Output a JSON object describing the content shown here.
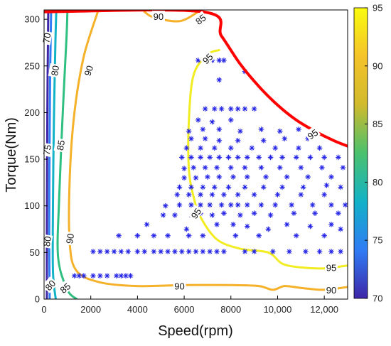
{
  "chart_data": {
    "type": "scatter",
    "title": "",
    "xlabel": "Speed(rpm)",
    "ylabel": "Torque(Nm)",
    "xlim": [
      0,
      13000
    ],
    "ylim": [
      0,
      310
    ],
    "x_ticks": [
      0,
      2000,
      4000,
      6000,
      8000,
      10000,
      12000
    ],
    "x_tick_labels": [
      "0",
      "2000",
      "4000",
      "6000",
      "8000",
      "10,000",
      "12,000"
    ],
    "y_ticks": [
      0,
      50,
      100,
      150,
      200,
      250,
      300
    ],
    "y_tick_labels": [
      "0",
      "50",
      "100",
      "150",
      "200",
      "250",
      "300"
    ],
    "colorbar": {
      "min": 70,
      "max": 95,
      "ticks": [
        70,
        75,
        80,
        85,
        90,
        95
      ],
      "tick_labels": [
        "70",
        "75",
        "80",
        "85",
        "90",
        "95"
      ],
      "colormap": [
        "#3e26a8",
        "#2f7cf5",
        "#12b2c7",
        "#4ac16d",
        "#d0ba2c",
        "#f5c32a",
        "#f9fb0e"
      ]
    },
    "torque_limit": {
      "color": "#ff0000",
      "points": [
        [
          0,
          308
        ],
        [
          6800,
          308
        ],
        [
          7600,
          282
        ],
        [
          8400,
          252
        ],
        [
          9200,
          228
        ],
        [
          10000,
          208
        ],
        [
          10800,
          192
        ],
        [
          11600,
          180
        ],
        [
          12400,
          170
        ],
        [
          13000,
          164
        ]
      ]
    },
    "contours": [
      {
        "level": 70,
        "color": "#3e26a8",
        "points": [
          [
            120,
            0
          ],
          [
            120,
            80
          ],
          [
            140,
            200
          ],
          [
            180,
            308
          ]
        ]
      },
      {
        "level": 75,
        "color": "#2f7cf5",
        "points": [
          [
            240,
            0
          ],
          [
            220,
            60
          ],
          [
            230,
            150
          ],
          [
            260,
            240
          ],
          [
            300,
            308
          ]
        ]
      },
      {
        "level": 80,
        "color": "#12b2c7",
        "points": [
          [
            500,
            0
          ],
          [
            380,
            30
          ],
          [
            380,
            100
          ],
          [
            420,
            190
          ],
          [
            480,
            270
          ],
          [
            520,
            308
          ]
        ]
      },
      {
        "level": 85,
        "color": "#2fbf80",
        "points": [
          [
            1400,
            0
          ],
          [
            1000,
            10
          ],
          [
            600,
            45
          ],
          [
            650,
            110
          ],
          [
            800,
            200
          ],
          [
            960,
            280
          ],
          [
            1000,
            308
          ]
        ]
      },
      {
        "level": 90,
        "color": "#f5b12a",
        "points": [
          [
            2300,
            308
          ],
          [
            1700,
            260
          ],
          [
            1300,
            200
          ],
          [
            1100,
            130
          ],
          [
            1100,
            60
          ],
          [
            1400,
            30
          ],
          [
            2400,
            18
          ],
          [
            4000,
            14
          ],
          [
            6000,
            15
          ],
          [
            8000,
            15
          ],
          [
            9200,
            14
          ],
          [
            9800,
            10
          ],
          [
            10300,
            14
          ],
          [
            11000,
            12
          ],
          [
            12000,
            10
          ],
          [
            13000,
            13
          ]
        ]
      },
      {
        "level": 90,
        "color": "#f5b12a",
        "points": [
          [
            4300,
            308
          ],
          [
            4700,
            302
          ],
          [
            5800,
            298
          ],
          [
            6600,
            308
          ]
        ]
      },
      {
        "level": 95,
        "color": "#f2ec22",
        "points": [
          [
            7500,
            267
          ],
          [
            7000,
            262
          ],
          [
            6400,
            240
          ],
          [
            6200,
            190
          ],
          [
            6200,
            140
          ],
          [
            6400,
            110
          ],
          [
            6700,
            88
          ],
          [
            7400,
            64
          ],
          [
            8400,
            54
          ],
          [
            9600,
            50
          ],
          [
            10200,
            38
          ],
          [
            11000,
            34
          ],
          [
            12000,
            33
          ],
          [
            13000,
            36
          ]
        ]
      }
    ],
    "contour_labels": [
      {
        "text": "70",
        "x": 100,
        "y": 280,
        "rotate": -80
      },
      {
        "text": "80",
        "x": 460,
        "y": 245,
        "rotate": -80
      },
      {
        "text": "75",
        "x": 120,
        "y": 160,
        "rotate": -80
      },
      {
        "text": "85",
        "x": 700,
        "y": 165,
        "rotate": -80
      },
      {
        "text": "90",
        "x": 1900,
        "y": 245,
        "rotate": -72
      },
      {
        "text": "80",
        "x": 120,
        "y": 62,
        "rotate": -80
      },
      {
        "text": "90",
        "x": 1100,
        "y": 65,
        "rotate": -80
      },
      {
        "text": "85",
        "x": 900,
        "y": 12,
        "rotate": -40
      },
      {
        "text": "80",
        "x": 260,
        "y": 15,
        "rotate": -50
      },
      {
        "text": "90",
        "x": 4900,
        "y": 303,
        "rotate": 0
      },
      {
        "text": "85",
        "x": 6700,
        "y": 300,
        "rotate": -38
      },
      {
        "text": "95",
        "x": 7000,
        "y": 258,
        "rotate": -45
      },
      {
        "text": "95",
        "x": 11500,
        "y": 177,
        "rotate": -35
      },
      {
        "text": "95",
        "x": 6500,
        "y": 92,
        "rotate": -55
      },
      {
        "text": "95",
        "x": 12300,
        "y": 34,
        "rotate": 0
      },
      {
        "text": "90",
        "x": 5800,
        "y": 14,
        "rotate": 0
      },
      {
        "text": "90",
        "x": 12300,
        "y": 10,
        "rotate": 0
      }
    ],
    "scatter": {
      "name": "",
      "color": "#2323e6",
      "marker": "asterisk",
      "points": [
        [
          1300,
          25
        ],
        [
          1500,
          25
        ],
        [
          1700,
          25
        ],
        [
          2100,
          25
        ],
        [
          2400,
          25
        ],
        [
          2700,
          25
        ],
        [
          3100,
          25
        ],
        [
          3300,
          25
        ],
        [
          3500,
          25
        ],
        [
          3700,
          25
        ],
        [
          2100,
          51
        ],
        [
          2400,
          51
        ],
        [
          2700,
          51
        ],
        [
          3000,
          51
        ],
        [
          3300,
          51
        ],
        [
          3600,
          51
        ],
        [
          4000,
          51
        ],
        [
          4300,
          51
        ],
        [
          4700,
          51
        ],
        [
          5000,
          51
        ],
        [
          5300,
          51
        ],
        [
          5600,
          51
        ],
        [
          5900,
          51
        ],
        [
          6200,
          51
        ],
        [
          6500,
          51
        ],
        [
          6800,
          51
        ],
        [
          7100,
          51
        ],
        [
          7400,
          51
        ],
        [
          7700,
          51
        ],
        [
          8600,
          51
        ],
        [
          9000,
          51
        ],
        [
          9800,
          51
        ],
        [
          10500,
          51
        ],
        [
          11200,
          51
        ],
        [
          11800,
          51
        ],
        [
          12300,
          51
        ],
        [
          12700,
          51
        ],
        [
          3200,
          68
        ],
        [
          4000,
          68
        ],
        [
          4700,
          68
        ],
        [
          5300,
          68
        ],
        [
          6200,
          68
        ],
        [
          6800,
          68
        ],
        [
          8200,
          68
        ],
        [
          9200,
          68
        ],
        [
          10800,
          68
        ],
        [
          12000,
          68
        ],
        [
          4400,
          80
        ],
        [
          6100,
          75
        ],
        [
          7400,
          80
        ],
        [
          8100,
          80
        ],
        [
          8700,
          78
        ],
        [
          9600,
          75
        ],
        [
          10400,
          80
        ],
        [
          11400,
          78
        ],
        [
          12300,
          80
        ],
        [
          12700,
          75
        ],
        [
          5100,
          90
        ],
        [
          5600,
          90
        ],
        [
          6300,
          90
        ],
        [
          6700,
          92
        ],
        [
          7200,
          90
        ],
        [
          7700,
          92
        ],
        [
          8400,
          90
        ],
        [
          9000,
          92
        ],
        [
          9700,
          90
        ],
        [
          10700,
          92
        ],
        [
          11600,
          92
        ],
        [
          12600,
          92
        ],
        [
          5200,
          100
        ],
        [
          5800,
          101
        ],
        [
          6300,
          101
        ],
        [
          6700,
          101
        ],
        [
          7100,
          101
        ],
        [
          7600,
          101
        ],
        [
          8000,
          101
        ],
        [
          8300,
          101
        ],
        [
          8700,
          101
        ],
        [
          9300,
          101
        ],
        [
          9900,
          101
        ],
        [
          10600,
          101
        ],
        [
          11500,
          101
        ],
        [
          12300,
          101
        ],
        [
          12900,
          101
        ],
        [
          5700,
          112
        ],
        [
          6200,
          112
        ],
        [
          6700,
          112
        ],
        [
          7200,
          112
        ],
        [
          7700,
          112
        ],
        [
          8300,
          112
        ],
        [
          9000,
          112
        ],
        [
          10000,
          112
        ],
        [
          11000,
          112
        ],
        [
          12000,
          112
        ],
        [
          5800,
          120
        ],
        [
          6300,
          120
        ],
        [
          6800,
          120
        ],
        [
          7300,
          120
        ],
        [
          7900,
          120
        ],
        [
          8600,
          120
        ],
        [
          9400,
          120
        ],
        [
          10200,
          120
        ],
        [
          11100,
          120
        ],
        [
          12100,
          122
        ],
        [
          12700,
          120
        ],
        [
          6000,
          130
        ],
        [
          6500,
          130
        ],
        [
          7000,
          131
        ],
        [
          7500,
          131
        ],
        [
          8100,
          131
        ],
        [
          8700,
          131
        ],
        [
          9500,
          131
        ],
        [
          10400,
          131
        ],
        [
          11300,
          131
        ],
        [
          12300,
          131
        ],
        [
          6000,
          140
        ],
        [
          6400,
          141
        ],
        [
          6900,
          141
        ],
        [
          7400,
          141
        ],
        [
          8000,
          141
        ],
        [
          8600,
          141
        ],
        [
          9300,
          141
        ],
        [
          10100,
          141
        ],
        [
          11000,
          141
        ],
        [
          11900,
          141
        ],
        [
          12800,
          141
        ],
        [
          5900,
          152
        ],
        [
          6300,
          152
        ],
        [
          6700,
          152
        ],
        [
          7100,
          152
        ],
        [
          7500,
          152
        ],
        [
          7900,
          152
        ],
        [
          8300,
          152
        ],
        [
          8700,
          152
        ],
        [
          9200,
          152
        ],
        [
          9700,
          152
        ],
        [
          10200,
          152
        ],
        [
          10800,
          152
        ],
        [
          11400,
          152
        ],
        [
          12000,
          152
        ],
        [
          12600,
          152
        ],
        [
          6100,
          162
        ],
        [
          6700,
          162
        ],
        [
          7300,
          162
        ],
        [
          8000,
          162
        ],
        [
          8900,
          162
        ],
        [
          9900,
          162
        ],
        [
          10900,
          162
        ],
        [
          11800,
          162
        ],
        [
          6300,
          172
        ],
        [
          6900,
          172
        ],
        [
          7500,
          170
        ],
        [
          8300,
          170
        ],
        [
          9400,
          170
        ],
        [
          10300,
          172
        ],
        [
          11300,
          172
        ],
        [
          6200,
          180
        ],
        [
          6800,
          182
        ],
        [
          7500,
          182
        ],
        [
          8400,
          180
        ],
        [
          9300,
          182
        ],
        [
          10100,
          180
        ],
        [
          10900,
          182
        ],
        [
          6600,
          192
        ],
        [
          7200,
          190
        ],
        [
          8000,
          192
        ],
        [
          6900,
          204
        ],
        [
          7300,
          204
        ],
        [
          7600,
          204
        ],
        [
          8000,
          204
        ],
        [
          8300,
          204
        ],
        [
          8600,
          204
        ],
        [
          9000,
          204
        ],
        [
          7500,
          235
        ],
        [
          8600,
          244
        ],
        [
          6600,
          256
        ],
        [
          6900,
          256
        ],
        [
          7200,
          256
        ],
        [
          7500,
          256
        ],
        [
          7700,
          256
        ]
      ]
    }
  }
}
